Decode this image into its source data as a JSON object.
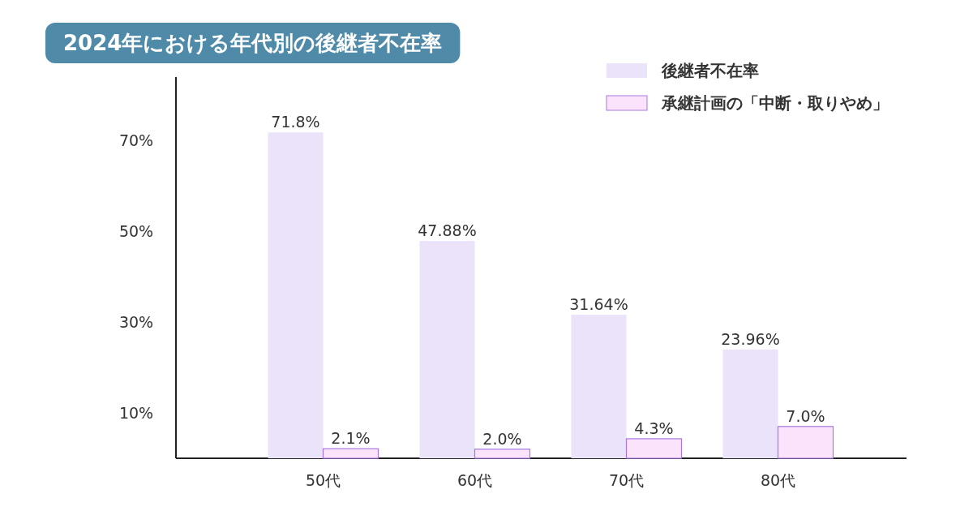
{
  "chart_data": {
    "type": "bar",
    "title": "2024年における年代別の後継者不在率",
    "categories": [
      "50代",
      "60代",
      "70代",
      "80代"
    ],
    "series": [
      {
        "name": "後継者不在率",
        "color": "#ebe3fa",
        "values": [
          71.8,
          47.88,
          31.64,
          23.96
        ],
        "value_labels": [
          "71.8%",
          "47.88%",
          "31.64%",
          "23.96%"
        ]
      },
      {
        "name": "承継計画の「中断・取りやめ」",
        "color": "#fbe3fb",
        "values": [
          2.1,
          2.0,
          4.3,
          7.0
        ],
        "value_labels": [
          "2.1%",
          "2.0%",
          "4.3%",
          "7.0%"
        ]
      }
    ],
    "ylim": [
      0,
      84
    ],
    "yticks": [
      {
        "value": 10,
        "label": "10%"
      },
      {
        "value": 30,
        "label": "30%"
      },
      {
        "value": 50,
        "label": "50%"
      },
      {
        "value": 70,
        "label": "70%"
      }
    ],
    "grid": false,
    "legend": "top right"
  }
}
